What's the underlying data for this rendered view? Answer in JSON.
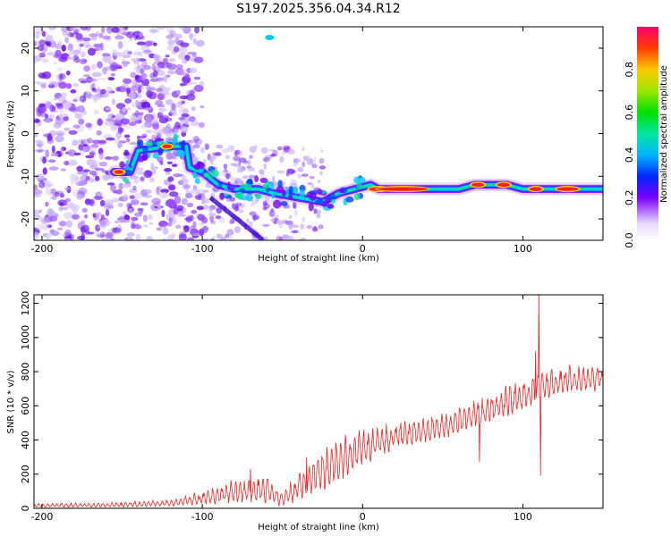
{
  "chart_data": [
    {
      "type": "heatmap",
      "title": "S197.2025.356.04.34.R12",
      "xlabel": "Height of straight line (km)",
      "ylabel": "Frequency (Hz)",
      "xlim": [
        -205,
        150
      ],
      "ylim": [
        -25,
        25
      ],
      "xticks": [
        -200,
        -100,
        0,
        100
      ],
      "yticks": [
        -20,
        -10,
        0,
        10,
        20
      ],
      "colorbar": {
        "label": "Normalized spectral amplitude",
        "range": [
          0,
          1
        ],
        "ticks": [
          "0.0",
          "0.2",
          "0.4",
          "0.6",
          "0.8"
        ]
      },
      "ridge": [
        {
          "x": -155,
          "y": -9
        },
        {
          "x": -145,
          "y": -9
        },
        {
          "x": -140,
          "y": -4
        },
        {
          "x": -120,
          "y": -3
        },
        {
          "x": -110,
          "y": -3
        },
        {
          "x": -108,
          "y": -8
        },
        {
          "x": -100,
          "y": -9
        },
        {
          "x": -90,
          "y": -12
        },
        {
          "x": -80,
          "y": -13
        },
        {
          "x": -65,
          "y": -13
        },
        {
          "x": -55,
          "y": -14
        },
        {
          "x": -40,
          "y": -15
        },
        {
          "x": -25,
          "y": -16
        },
        {
          "x": -15,
          "y": -14
        },
        {
          "x": -5,
          "y": -13
        },
        {
          "x": 5,
          "y": -12
        },
        {
          "x": 10,
          "y": -13
        },
        {
          "x": 60,
          "y": -13
        },
        {
          "x": 70,
          "y": -12
        },
        {
          "x": 90,
          "y": -12
        },
        {
          "x": 100,
          "y": -13
        },
        {
          "x": 150,
          "y": -13
        }
      ],
      "hotspots": [
        {
          "x": 10,
          "y": -13,
          "w": 12
        },
        {
          "x": 25,
          "y": -13,
          "w": 32
        },
        {
          "x": 72,
          "y": -12,
          "w": 8
        },
        {
          "x": 88,
          "y": -12,
          "w": 8
        },
        {
          "x": 108,
          "y": -13,
          "w": 8
        },
        {
          "x": 128,
          "y": -13,
          "w": 14
        },
        {
          "x": -122,
          "y": -3,
          "w": 6
        },
        {
          "x": -152,
          "y": -9,
          "w": 6
        }
      ]
    },
    {
      "type": "line",
      "xlabel": "Height of straight line (km)",
      "ylabel": "SNR (10 * v/v)",
      "xlim": [
        -205,
        150
      ],
      "ylim": [
        0,
        1250
      ],
      "xticks": [
        -200,
        -100,
        0,
        100
      ],
      "yticks": [
        0,
        200,
        400,
        600,
        800,
        1000,
        1200
      ],
      "color": "#ee2222",
      "envelope": [
        {
          "x": -205,
          "lo": 5,
          "hi": 30
        },
        {
          "x": -150,
          "lo": 5,
          "hi": 40
        },
        {
          "x": -120,
          "lo": 10,
          "hi": 60
        },
        {
          "x": -100,
          "lo": 20,
          "hi": 110
        },
        {
          "x": -80,
          "lo": 30,
          "hi": 190
        },
        {
          "x": -60,
          "lo": 20,
          "hi": 230
        },
        {
          "x": -50,
          "lo": 10,
          "hi": 100
        },
        {
          "x": -40,
          "lo": 30,
          "hi": 250
        },
        {
          "x": -20,
          "lo": 120,
          "hi": 420
        },
        {
          "x": 0,
          "lo": 250,
          "hi": 480
        },
        {
          "x": 20,
          "lo": 340,
          "hi": 520
        },
        {
          "x": 40,
          "lo": 380,
          "hi": 560
        },
        {
          "x": 60,
          "lo": 430,
          "hi": 610
        },
        {
          "x": 80,
          "lo": 500,
          "hi": 700
        },
        {
          "x": 100,
          "lo": 560,
          "hi": 790
        },
        {
          "x": 120,
          "lo": 660,
          "hi": 850
        },
        {
          "x": 150,
          "lo": 680,
          "hi": 870
        }
      ],
      "spikes": [
        {
          "x": -70,
          "y": 230
        },
        {
          "x": -35,
          "y": 300
        },
        {
          "x": 73,
          "y": 270
        },
        {
          "x": 108,
          "y": 920
        },
        {
          "x": 110,
          "y": 1250
        },
        {
          "x": 111,
          "y": 190
        }
      ]
    }
  ]
}
